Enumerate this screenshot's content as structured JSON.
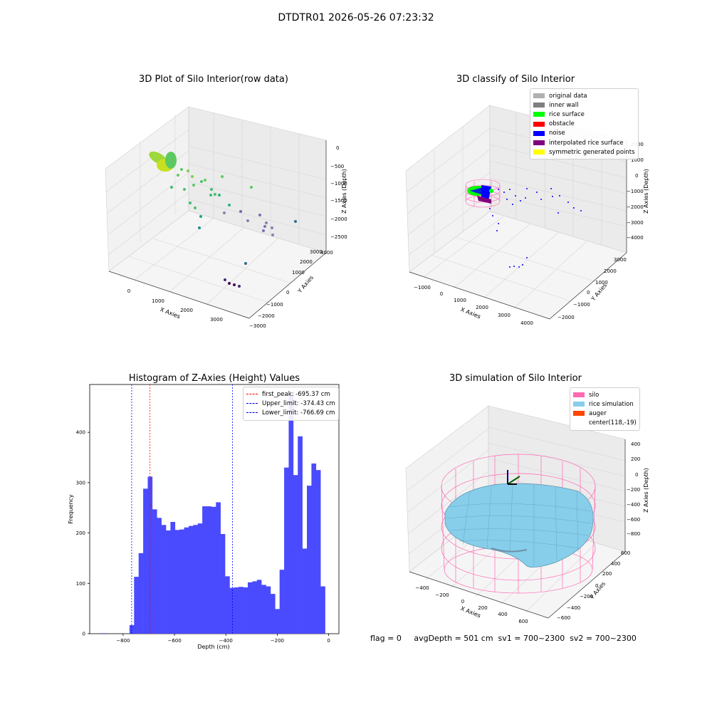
{
  "suptitle": "DTDTR01 2026-05-26 07:23:32",
  "footer": "flag = 0     avgDepth = 501 cm  sv1 = 700~2300  sv2 = 700~2300",
  "chart_data": [
    {
      "type": "scatter",
      "projection": "3d",
      "title": "3D Plot of Silo Interior(row data)",
      "xlabel": "X Axies",
      "ylabel": "Y Axies",
      "zlabel": "Z Axies (Depth)",
      "xticks": [
        "0",
        "1000",
        "2000",
        "3000"
      ],
      "yticks": [
        "−3000",
        "−2000",
        "−1000",
        "0",
        "1000",
        "2000",
        "3000",
        "4000"
      ],
      "zticks": [
        "−2500",
        "−2000",
        "−1500",
        "−1000",
        "−500",
        "0"
      ],
      "colormap": "viridis",
      "points": [
        {
          "x": 300,
          "y": 1800,
          "z": -300
        },
        {
          "x": 600,
          "y": 1600,
          "z": -600
        },
        {
          "x": 900,
          "y": 1000,
          "z": -800
        },
        {
          "x": 1400,
          "y": 800,
          "z": -900
        },
        {
          "x": 1700,
          "y": 500,
          "z": -1100
        },
        {
          "x": 1200,
          "y": 0,
          "z": -1300
        },
        {
          "x": 2200,
          "y": -300,
          "z": -1600
        },
        {
          "x": 2600,
          "y": -500,
          "z": -1900
        },
        {
          "x": 3000,
          "y": -800,
          "z": -2100
        },
        {
          "x": 2800,
          "y": -1200,
          "z": -2500
        }
      ]
    },
    {
      "type": "scatter",
      "projection": "3d",
      "title": "3D classify of Silo Interior",
      "xlabel": "X Axies",
      "ylabel": "Y Axies",
      "zlabel": "Z Axies (Depth)",
      "xticks": [
        "−1000",
        "0",
        "1000",
        "2000",
        "3000",
        "4000"
      ],
      "yticks": [
        "−2000",
        "−1000",
        "0",
        "1000",
        "2000",
        "3000"
      ],
      "zticks": [
        "−4000",
        "−3000",
        "−2000",
        "−1000",
        "0",
        "1000",
        "2000"
      ],
      "legend": [
        {
          "label": "original data",
          "color": "#b0b0b0"
        },
        {
          "label": "inner wall",
          "color": "#808080"
        },
        {
          "label": "rice surface",
          "color": "#00ff00"
        },
        {
          "label": "obstacle",
          "color": "#ff0000"
        },
        {
          "label": "noise",
          "color": "#0000ff"
        },
        {
          "label": "interpolated rice surface",
          "color": "#800080"
        },
        {
          "label": "symmetric generated points",
          "color": "#ffff00"
        }
      ]
    },
    {
      "type": "bar",
      "title": "Histogram of Z-Axies (Height) Values",
      "xlabel": "Depth (cm)",
      "ylabel": "Frequency",
      "xlim": [
        -930,
        40
      ],
      "ylim": [
        0,
        495
      ],
      "xticks": [
        -800,
        -600,
        -400,
        -200,
        0
      ],
      "xticklabels": [
        "−800",
        "−600",
        "−400",
        "−200",
        "0"
      ],
      "yticks": [
        0,
        100,
        200,
        300,
        400
      ],
      "bar_color": "#4a4aff",
      "bin_width": 17.7,
      "bins_start": -775,
      "values": [
        17,
        113,
        160,
        288,
        312,
        247,
        230,
        216,
        205,
        222,
        206,
        207,
        211,
        214,
        216,
        219,
        253,
        253,
        252,
        261,
        198,
        114,
        91,
        92,
        93,
        92,
        102,
        104,
        107,
        97,
        94,
        79,
        49,
        127,
        330,
        476,
        315,
        392,
        169,
        294,
        338,
        325,
        94
      ],
      "extra_bars": [
        {
          "x": -883,
          "width": 17,
          "value": 1
        }
      ],
      "vlines": [
        {
          "x": -695.37,
          "label": "first_peak: -695.37 cm",
          "color": "#ff0000"
        },
        {
          "x": -374.43,
          "label": "Upper_limit: -374.43 cm",
          "color": "#0000ff"
        },
        {
          "x": -766.69,
          "label": "Lower_limit: -766.69 cm",
          "color": "#0000ff"
        }
      ]
    },
    {
      "type": "surface",
      "projection": "3d",
      "title": "3D simulation of Silo Interior",
      "xlabel": "X Axies",
      "ylabel": "Y Axies",
      "zlabel": "Z Axies (Depth)",
      "xticks": [
        "−400",
        "−200",
        "0",
        "200",
        "400",
        "600"
      ],
      "yticks": [
        "−600",
        "−400",
        "−200",
        "0",
        "200",
        "400",
        "600"
      ],
      "zticks": [
        "−800",
        "−600",
        "−400",
        "−200",
        "0",
        "200",
        "400"
      ],
      "legend": [
        {
          "label": "silo",
          "color": "#ff69b4"
        },
        {
          "label": "rice simulation",
          "color": "#87ceeb"
        },
        {
          "label": "auger",
          "color": "#ff4500"
        },
        {
          "label": "center(118,-19)",
          "color": ""
        }
      ]
    }
  ]
}
